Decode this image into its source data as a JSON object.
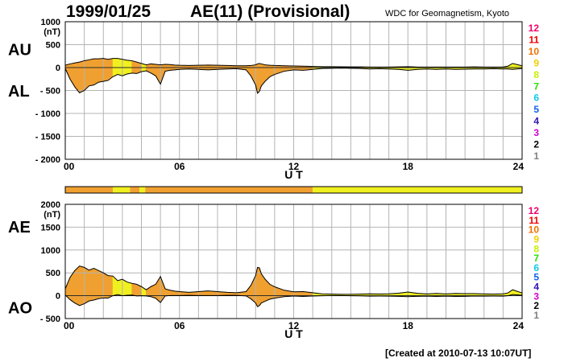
{
  "header": {
    "date": "1999/01/25",
    "title": "AE(11) (Provisional)",
    "institution": "WDC for Geomagnetism, Kyoto"
  },
  "footer": {
    "created": "[Created at 2010-07-13 10:07UT]"
  },
  "level_colors": [
    "#c8c8c8",
    "#808080",
    "#000000",
    "#d400d4",
    "#3010b0",
    "#1060f0",
    "#10c8e8",
    "#28e000",
    "#c8f000",
    "#f0d000",
    "#f07000",
    "#f00000",
    "#f0006c"
  ],
  "chart_data": [
    {
      "type": "area",
      "name": "upper",
      "series_labels": [
        "AU",
        "AL"
      ],
      "y_unit": "(nT)",
      "ylim": [
        -2000,
        1000
      ],
      "yticks": [
        "1000",
        "500",
        "0",
        "- 500",
        "- 1000",
        "- 1500",
        "- 2000"
      ],
      "xlim": [
        0,
        24
      ],
      "xticks": [
        "00",
        "06",
        "12",
        "18",
        "24"
      ],
      "xlabel": "U T",
      "grid": true,
      "level_labels": [
        "12",
        "11",
        "10",
        "9",
        "8",
        "7",
        "6",
        "5",
        "4",
        "3",
        "2",
        "1"
      ],
      "x": [
        0,
        0.25,
        0.5,
        0.75,
        1,
        1.25,
        1.5,
        1.75,
        2,
        2.25,
        2.5,
        2.75,
        3,
        3.25,
        3.5,
        3.75,
        4,
        4.25,
        4.5,
        4.75,
        5,
        5.25,
        5.5,
        5.75,
        6,
        6.5,
        7,
        7.5,
        8,
        8.5,
        9,
        9.5,
        9.75,
        10,
        10.1,
        10.2,
        10.3,
        10.5,
        10.75,
        11,
        11.5,
        12,
        12.5,
        13,
        13.5,
        14,
        14.5,
        15,
        15.5,
        16,
        16.5,
        17,
        17.5,
        18,
        18.5,
        19,
        19.5,
        20,
        20.5,
        21,
        21.5,
        22,
        22.5,
        23,
        23.25,
        23.5,
        24
      ],
      "au": [
        50,
        80,
        100,
        120,
        150,
        170,
        190,
        190,
        200,
        180,
        200,
        200,
        180,
        160,
        150,
        120,
        90,
        60,
        80,
        70,
        60,
        70,
        65,
        55,
        50,
        45,
        50,
        55,
        50,
        45,
        40,
        40,
        45,
        60,
        80,
        90,
        80,
        60,
        50,
        45,
        40,
        35,
        30,
        25,
        20,
        20,
        18,
        15,
        15,
        12,
        12,
        12,
        15,
        20,
        12,
        10,
        10,
        10,
        10,
        10,
        15,
        10,
        10,
        12,
        30,
        90,
        40
      ],
      "al": [
        -20,
        -250,
        -420,
        -550,
        -500,
        -400,
        -380,
        -320,
        -300,
        -280,
        -200,
        -150,
        -180,
        -140,
        -120,
        -130,
        -90,
        -70,
        -120,
        -180,
        -360,
        -80,
        -60,
        -50,
        -40,
        -30,
        -40,
        -50,
        -40,
        -30,
        -25,
        -50,
        -180,
        -380,
        -560,
        -520,
        -400,
        -300,
        -200,
        -150,
        -80,
        -50,
        -60,
        -40,
        -20,
        -15,
        -12,
        -15,
        -20,
        -30,
        -25,
        -30,
        -40,
        -60,
        -40,
        -30,
        -40,
        -30,
        -40,
        -35,
        -30,
        -30,
        -25,
        -30,
        -30,
        -40,
        -20
      ]
    },
    {
      "type": "area",
      "name": "lower",
      "series_labels": [
        "AE",
        "AO"
      ],
      "y_unit": "(nT)",
      "ylim": [
        -500,
        2000
      ],
      "yticks": [
        "2000",
        "1500",
        "1000",
        "500",
        "0",
        "- 500"
      ],
      "xlim": [
        0,
        24
      ],
      "xticks": [
        "00",
        "06",
        "12",
        "18",
        "24"
      ],
      "xlabel": "U T",
      "grid": true,
      "level_labels": [
        "12",
        "11",
        "10",
        "9",
        "8",
        "7",
        "6",
        "5",
        "4",
        "3",
        "2",
        "1"
      ],
      "x": [
        0,
        0.25,
        0.5,
        0.75,
        1,
        1.25,
        1.5,
        1.75,
        2,
        2.25,
        2.5,
        2.75,
        3,
        3.25,
        3.5,
        3.75,
        4,
        4.25,
        4.5,
        4.75,
        5,
        5.25,
        5.5,
        5.75,
        6,
        6.5,
        7,
        7.5,
        8,
        8.5,
        9,
        9.5,
        9.75,
        10,
        10.1,
        10.2,
        10.3,
        10.5,
        10.75,
        11,
        11.5,
        12,
        12.5,
        13,
        13.5,
        14,
        14.5,
        15,
        15.5,
        16,
        16.5,
        17,
        17.5,
        18,
        18.5,
        19,
        19.5,
        20,
        20.5,
        21,
        21.5,
        22,
        22.5,
        23,
        23.25,
        23.5,
        24
      ],
      "ae": [
        150,
        400,
        550,
        650,
        620,
        560,
        600,
        550,
        500,
        440,
        430,
        330,
        360,
        300,
        270,
        250,
        200,
        130,
        200,
        250,
        420,
        150,
        120,
        100,
        90,
        75,
        90,
        105,
        90,
        75,
        65,
        90,
        225,
        440,
        620,
        610,
        480,
        360,
        250,
        195,
        120,
        85,
        90,
        65,
        40,
        35,
        30,
        30,
        35,
        42,
        37,
        42,
        55,
        80,
        52,
        40,
        50,
        40,
        50,
        45,
        45,
        40,
        35,
        42,
        60,
        130,
        60
      ],
      "ao": [
        15,
        -85,
        -160,
        -215,
        -175,
        -115,
        -95,
        -65,
        -50,
        -50,
        0,
        25,
        0,
        10,
        15,
        -5,
        0,
        -5,
        -20,
        -55,
        -150,
        -5,
        3,
        3,
        5,
        8,
        5,
        3,
        5,
        8,
        8,
        -5,
        -68,
        -160,
        -240,
        -215,
        -160,
        -120,
        -75,
        -53,
        -20,
        -8,
        -15,
        -8,
        0,
        3,
        3,
        0,
        -3,
        -9,
        -7,
        -9,
        -13,
        -20,
        -14,
        -10,
        -15,
        -10,
        -15,
        -13,
        -8,
        -10,
        -8,
        -9,
        0,
        25,
        10
      ]
    }
  ],
  "activity_band": {
    "segments": [
      {
        "from": 0,
        "to": 2.5,
        "color": "#f0a030"
      },
      {
        "from": 2.5,
        "to": 3.4,
        "color": "#f0f020"
      },
      {
        "from": 3.4,
        "to": 3.9,
        "color": "#f0a030"
      },
      {
        "from": 3.9,
        "to": 4.2,
        "color": "#f0f020"
      },
      {
        "from": 4.2,
        "to": 13.0,
        "color": "#f0a030"
      },
      {
        "from": 13.0,
        "to": 24,
        "color": "#f0f020"
      }
    ]
  }
}
